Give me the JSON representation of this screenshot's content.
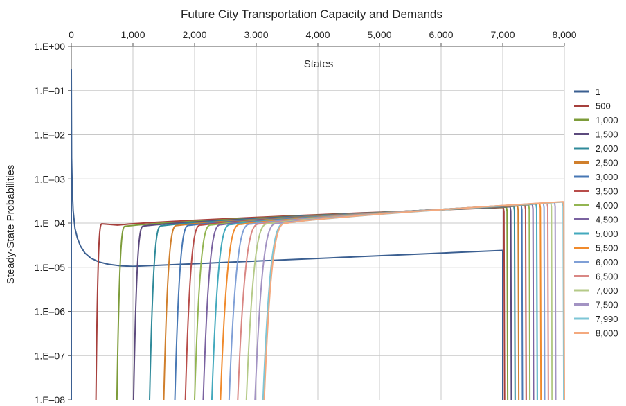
{
  "chart_data": {
    "type": "line",
    "title": "Future City Transportation Capacity and Demands",
    "xlabel": "States",
    "ylabel": "Steady-State Probabilities",
    "x_axis_position": "top",
    "xlim": [
      0,
      8000
    ],
    "x_ticks": [
      0,
      1000,
      2000,
      3000,
      4000,
      5000,
      6000,
      7000,
      8000
    ],
    "x_tick_labels": [
      "0",
      "1,000",
      "2,000",
      "3,000",
      "4,000",
      "5,000",
      "6,000",
      "7,000",
      "8,000"
    ],
    "y_scale": "log",
    "ylim": [
      1e-08,
      1
    ],
    "y_ticks": [
      1,
      0.1,
      0.01,
      0.001,
      0.0001,
      1e-05,
      1e-06,
      1e-07,
      1e-08
    ],
    "y_tick_labels": [
      "1.E+00",
      "1.E–01",
      "1.E–02",
      "1.E–03",
      "1.E–04",
      "1.E–05",
      "1.E–06",
      "1.E–07",
      "1.E–08"
    ],
    "grid": true,
    "legend_position": "right",
    "series": [
      {
        "name": "1",
        "color": "#3b5f91",
        "rise_start": 0,
        "rise_end": 0,
        "peak": 0.3,
        "plateau_start": 2.5e-05,
        "plateau_min": 1.05e-05,
        "plateau_end_value": 2.4e-05,
        "drop_state": 7000
      },
      {
        "name": "500",
        "color": "#a63f3c",
        "rise_start": 400,
        "rise_end": 500,
        "peak": 9.6e-05,
        "plateau_min": 9e-05,
        "plateau_end_value": 0.000225,
        "drop_state": 7030
      },
      {
        "name": "1,000",
        "color": "#7d9c3a",
        "rise_start": 740,
        "rise_end": 880,
        "peak": 8.5e-05,
        "plateau_end_value": 0.00023,
        "drop_state": 7080
      },
      {
        "name": "1,500",
        "color": "#5c4a7d",
        "rise_start": 1010,
        "rise_end": 1180,
        "peak": 8.6e-05,
        "plateau_end_value": 0.000235,
        "drop_state": 7140
      },
      {
        "name": "2,000",
        "color": "#2f8a9a",
        "rise_start": 1270,
        "rise_end": 1470,
        "peak": 8.7e-05,
        "plateau_end_value": 0.00024,
        "drop_state": 7200
      },
      {
        "name": "2,500",
        "color": "#d07f2c",
        "rise_start": 1500,
        "rise_end": 1720,
        "peak": 8.8e-05,
        "plateau_end_value": 0.000245,
        "drop_state": 7260
      },
      {
        "name": "3,000",
        "color": "#4777b4",
        "rise_start": 1680,
        "rise_end": 1920,
        "peak": 8.9e-05,
        "plateau_end_value": 0.00025,
        "drop_state": 7320
      },
      {
        "name": "3,500",
        "color": "#b84d4a",
        "rise_start": 1850,
        "rise_end": 2110,
        "peak": 9e-05,
        "plateau_end_value": 0.000255,
        "drop_state": 7380
      },
      {
        "name": "4,000",
        "color": "#93b552",
        "rise_start": 2000,
        "rise_end": 2280,
        "peak": 9.1e-05,
        "plateau_end_value": 0.00026,
        "drop_state": 7440
      },
      {
        "name": "4,500",
        "color": "#7a62a0",
        "rise_start": 2140,
        "rise_end": 2440,
        "peak": 9.2e-05,
        "plateau_end_value": 0.000265,
        "drop_state": 7500
      },
      {
        "name": "5,000",
        "color": "#43a9bd",
        "rise_start": 2280,
        "rise_end": 2600,
        "peak": 9.3e-05,
        "plateau_end_value": 0.00027,
        "drop_state": 7560
      },
      {
        "name": "5,500",
        "color": "#f08a2c",
        "rise_start": 2420,
        "rise_end": 2760,
        "peak": 9.4e-05,
        "plateau_end_value": 0.000275,
        "drop_state": 7620
      },
      {
        "name": "6,000",
        "color": "#7f9fd6",
        "rise_start": 2560,
        "rise_end": 2920,
        "peak": 9.5e-05,
        "plateau_end_value": 0.00028,
        "drop_state": 7680
      },
      {
        "name": "6,500",
        "color": "#d98784",
        "rise_start": 2700,
        "rise_end": 3070,
        "peak": 9.6e-05,
        "plateau_end_value": 0.000285,
        "drop_state": 7740
      },
      {
        "name": "7,000",
        "color": "#b5ca88",
        "rise_start": 2840,
        "rise_end": 3210,
        "peak": 9.7e-05,
        "plateau_end_value": 0.00029,
        "drop_state": 7800
      },
      {
        "name": "7,500",
        "color": "#a393c3",
        "rise_start": 2980,
        "rise_end": 3350,
        "peak": 9.8e-05,
        "plateau_end_value": 0.000295,
        "drop_state": 7860
      },
      {
        "name": "7,990",
        "color": "#7dc6d6",
        "rise_start": 3110,
        "rise_end": 3480,
        "peak": 9.9e-05,
        "plateau_end_value": 0.0003,
        "drop_state": 7990
      },
      {
        "name": "8,000",
        "color": "#f4a97e",
        "rise_start": 3130,
        "rise_end": 3500,
        "peak": 0.0001,
        "plateau_end_value": 0.000305,
        "drop_state": 8000
      }
    ]
  }
}
